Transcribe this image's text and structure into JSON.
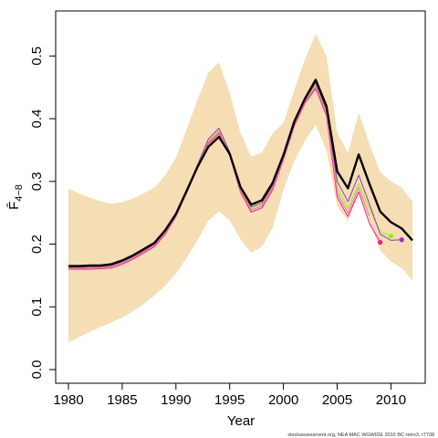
{
  "chart_data": {
    "type": "line",
    "xlabel": "Year",
    "ylabel": "F̄",
    "ylabel_subscript": "4−8",
    "xlim": [
      1980,
      2012
    ],
    "ylim": [
      0.0,
      0.55
    ],
    "xticks": [
      1980,
      1985,
      1990,
      1995,
      2000,
      2005,
      2010
    ],
    "yticks": [
      0.0,
      0.1,
      0.2,
      0.3,
      0.4,
      0.5
    ],
    "ytick_labels": [
      "0.0",
      "0.1",
      "0.2",
      "0.3",
      "0.4",
      "0.5"
    ],
    "footnote": "stockassessment.org, NEA MAC WGWIDE 2016 BC retro3, r7738",
    "band": {
      "color": "#f5deb3",
      "x": [
        1980,
        1981,
        1982,
        1983,
        1984,
        1985,
        1986,
        1987,
        1988,
        1989,
        1990,
        1991,
        1992,
        1993,
        1994,
        1995,
        1996,
        1997,
        1998,
        1999,
        2000,
        2001,
        2002,
        2003,
        2004,
        2005,
        2006,
        2007,
        2008,
        2009,
        2010,
        2011,
        2012
      ],
      "upper": [
        0.288,
        0.281,
        0.274,
        0.268,
        0.264,
        0.267,
        0.273,
        0.281,
        0.29,
        0.31,
        0.338,
        0.383,
        0.43,
        0.473,
        0.49,
        0.442,
        0.377,
        0.34,
        0.346,
        0.377,
        0.393,
        0.445,
        0.495,
        0.535,
        0.5,
        0.378,
        0.345,
        0.41,
        0.36,
        0.315,
        0.3,
        0.29,
        0.268
      ],
      "lower": [
        0.043,
        0.052,
        0.06,
        0.068,
        0.075,
        0.083,
        0.093,
        0.105,
        0.118,
        0.134,
        0.153,
        0.178,
        0.206,
        0.237,
        0.252,
        0.238,
        0.208,
        0.186,
        0.196,
        0.226,
        0.287,
        0.332,
        0.365,
        0.39,
        0.35,
        0.26,
        0.237,
        0.282,
        0.236,
        0.19,
        0.172,
        0.162,
        0.142
      ]
    },
    "series": [
      {
        "color": "#000000",
        "width": 2.4,
        "x": [
          1980,
          1981,
          1982,
          1983,
          1984,
          1985,
          1986,
          1987,
          1988,
          1989,
          1990,
          1991,
          1992,
          1993,
          1994,
          1995,
          1996,
          1997,
          1998,
          1999,
          2000,
          2001,
          2002,
          2003,
          2004,
          2005,
          2006,
          2007,
          2008,
          2009,
          2010,
          2011,
          2012
        ],
        "values": [
          0.165,
          0.165,
          0.166,
          0.166,
          0.168,
          0.174,
          0.182,
          0.192,
          0.202,
          0.222,
          0.248,
          0.285,
          0.323,
          0.355,
          0.371,
          0.344,
          0.291,
          0.263,
          0.27,
          0.298,
          0.342,
          0.395,
          0.432,
          0.462,
          0.42,
          0.316,
          0.289,
          0.343,
          0.296,
          0.252,
          0.235,
          0.225,
          0.206
        ]
      },
      {
        "color": "#ff1493",
        "width": 1.0,
        "x": [
          1980,
          1981,
          1982,
          1983,
          1984,
          1985,
          1986,
          1987,
          1988,
          1989,
          1990,
          1991,
          1992,
          1993,
          1994,
          1995,
          1996,
          1997,
          1998,
          1999,
          2000,
          2001,
          2002,
          2003,
          2004,
          2005,
          2006,
          2007,
          2008,
          2009
        ],
        "values": [
          0.16,
          0.16,
          0.16,
          0.161,
          0.162,
          0.168,
          0.176,
          0.186,
          0.196,
          0.216,
          0.244,
          0.282,
          0.322,
          0.36,
          0.376,
          0.342,
          0.283,
          0.251,
          0.258,
          0.287,
          0.335,
          0.388,
          0.425,
          0.448,
          0.405,
          0.275,
          0.244,
          0.283,
          0.233,
          0.203
        ],
        "end_marker": true
      },
      {
        "color": "#7fff00",
        "width": 1.0,
        "x": [
          1980,
          1981,
          1982,
          1983,
          1984,
          1985,
          1986,
          1987,
          1988,
          1989,
          1990,
          1991,
          1992,
          1993,
          1994,
          1995,
          1996,
          1997,
          1998,
          1999,
          2000,
          2001,
          2002,
          2003,
          2004,
          2005,
          2006,
          2007,
          2008,
          2009,
          2010
        ],
        "values": [
          0.162,
          0.162,
          0.163,
          0.163,
          0.165,
          0.171,
          0.179,
          0.189,
          0.199,
          0.219,
          0.246,
          0.284,
          0.324,
          0.364,
          0.381,
          0.345,
          0.287,
          0.256,
          0.263,
          0.292,
          0.338,
          0.391,
          0.428,
          0.453,
          0.41,
          0.29,
          0.257,
          0.297,
          0.257,
          0.22,
          0.213
        ],
        "end_marker": true
      },
      {
        "color": "#9932cc",
        "width": 1.0,
        "x": [
          1980,
          1981,
          1982,
          1983,
          1984,
          1985,
          1986,
          1987,
          1988,
          1989,
          1990,
          1991,
          1992,
          1993,
          1994,
          1995,
          1996,
          1997,
          1998,
          1999,
          2000,
          2001,
          2002,
          2003,
          2004,
          2005,
          2006,
          2007,
          2008,
          2009,
          2010,
          2011
        ],
        "values": [
          0.163,
          0.163,
          0.164,
          0.164,
          0.166,
          0.172,
          0.18,
          0.19,
          0.2,
          0.22,
          0.247,
          0.286,
          0.326,
          0.367,
          0.385,
          0.347,
          0.289,
          0.259,
          0.266,
          0.294,
          0.34,
          0.393,
          0.43,
          0.457,
          0.414,
          0.3,
          0.268,
          0.31,
          0.264,
          0.216,
          0.206,
          0.207
        ],
        "end_marker": true
      },
      {
        "color": "#ff69b4",
        "width": 1.0,
        "x": [
          1980,
          1981,
          1982,
          1983,
          1984,
          1985,
          1986,
          1987,
          1988,
          1989,
          1990,
          1991,
          1992,
          1993,
          1994,
          1995,
          1996,
          1997,
          1998,
          1999,
          2000,
          2001,
          2002,
          2003,
          2004,
          2005,
          2006,
          2007,
          2008
        ],
        "values": [
          0.161,
          0.161,
          0.162,
          0.162,
          0.164,
          0.17,
          0.178,
          0.188,
          0.198,
          0.218,
          0.245,
          0.283,
          0.323,
          0.362,
          0.379,
          0.343,
          0.285,
          0.254,
          0.261,
          0.29,
          0.337,
          0.39,
          0.427,
          0.451,
          0.408,
          0.282,
          0.25,
          0.29,
          0.245
        ],
        "end_marker": false
      }
    ]
  }
}
